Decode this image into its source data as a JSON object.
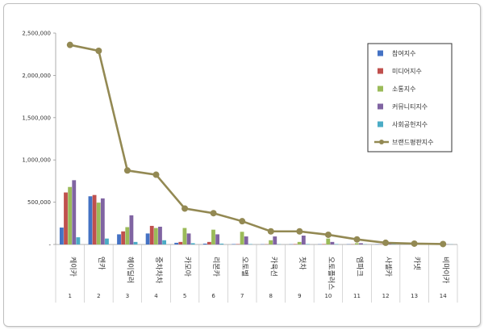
{
  "chart_data": {
    "type": "bar",
    "categories": [
      "케이카",
      "엔카",
      "헤이딜러",
      "중차차차",
      "카모아",
      "리본카",
      "오토벨",
      "카육선",
      "첫차",
      "오토플러스",
      "엠파크",
      "사셀카",
      "카넷",
      "비마이카"
    ],
    "category_numbers": [
      "1",
      "2",
      "3",
      "4",
      "5",
      "6",
      "7",
      "8",
      "9",
      "10",
      "11",
      "12",
      "13",
      "14"
    ],
    "ylim": [
      0,
      2500000
    ],
    "yticks": [
      0,
      500000,
      1000000,
      1500000,
      2000000,
      2500000
    ],
    "ytick_labels": [
      "-",
      "500,000",
      "1,000,000",
      "1,500,000",
      "2,000,000",
      "2,500,000"
    ],
    "series": [
      {
        "name": "참여지수",
        "color": "#4472c4",
        "values": [
          200000,
          570000,
          120000,
          130000,
          20000,
          10000,
          5000,
          3000,
          3000,
          3000,
          3000,
          3000,
          2000,
          2000
        ]
      },
      {
        "name": "미디어지수",
        "color": "#c0504d",
        "values": [
          615000,
          585000,
          155000,
          220000,
          30000,
          30000,
          5000,
          3000,
          5000,
          5000,
          3000,
          3000,
          2000,
          2000
        ]
      },
      {
        "name": "소통지수",
        "color": "#9bbb59",
        "values": [
          680000,
          495000,
          205000,
          195000,
          195000,
          175000,
          150000,
          50000,
          30000,
          70000,
          15000,
          10000,
          5000,
          3000
        ]
      },
      {
        "name": "커뮤니티지수",
        "color": "#8064a2",
        "values": [
          760000,
          545000,
          345000,
          210000,
          130000,
          120000,
          95000,
          95000,
          105000,
          30000,
          15000,
          8000,
          5000,
          3000
        ]
      },
      {
        "name": "사회공헌지수",
        "color": "#4bacc6",
        "values": [
          85000,
          70000,
          30000,
          50000,
          15000,
          10000,
          5000,
          3000,
          5000,
          5000,
          3000,
          3000,
          2000,
          2000
        ]
      },
      {
        "name": "브랜드평판지수",
        "color": "#938953",
        "type": "line",
        "values": [
          2360000,
          2290000,
          875000,
          825000,
          425000,
          370000,
          275000,
          155000,
          155000,
          115000,
          60000,
          20000,
          10000,
          5000
        ]
      }
    ],
    "grid": false,
    "legend": "top-right"
  }
}
